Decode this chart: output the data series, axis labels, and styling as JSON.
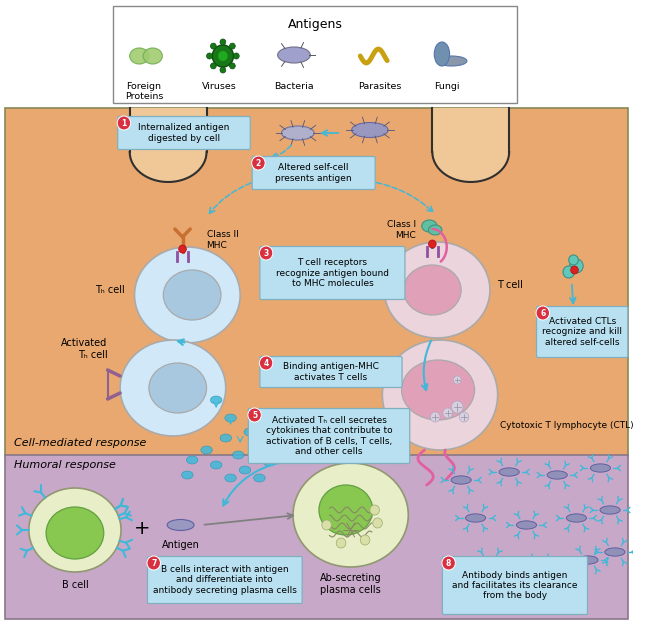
{
  "bg_white": "#ffffff",
  "bg_orange": "#e8a870",
  "bg_purple": "#c8a8c8",
  "legend_bg": "#ffffff",
  "legend_border": "#888888",
  "cell_blue_fill": "#d0e8f8",
  "cell_blue_outline": "#aaaaaa",
  "cell_blue_nucleus": "#a8c8e0",
  "cell_pink_fill": "#ecd4dc",
  "cell_pink_outline": "#aaaaaa",
  "cell_pink_nucleus": "#e0a0b8",
  "cell_bcell_outer": "#e8eec8",
  "cell_bcell_inner": "#88c850",
  "box_color": "#b8e0f0",
  "box_edge": "#80b0c0",
  "arrow_cyan": "#40b8d8",
  "arrow_pink": "#e060a0",
  "num_circle": "#d83040",
  "num_text": "#ffffff",
  "bacteria_fill": "#9898c8",
  "bacteria_outline": "#6868a0",
  "membrane_color": "#303030",
  "mhc_orange": "#c87030",
  "mhc_purple": "#9050a0",
  "title": "Antigens",
  "legend_items": [
    "Foreign\nProteins",
    "Viruses",
    "Bacteria",
    "Parasites",
    "Fungi"
  ],
  "step_labels": [
    "Internalized antigen\ndigested by cell",
    "Altered self-cell\npresents antigen",
    "T cell receptors\nrecognize antigen bound\nto MHC molecules",
    "Binding antigen-MHC\nactivates T cells",
    "Activated Tₕ cell secretes\ncytokines that contribute to\nactivation of B cells, T⁣ cells,\nand other cells",
    "Activated CTLs\nrecognize and kill\naltered self-cells",
    "B cells interact with antigen\nand differentiate into\nantibody secreting plasma cells",
    "Antibody binds antigen\nand facilitates its clearance\nfrom the body"
  ],
  "section_cell": "Cell-mediated response",
  "section_humoral": "Humoral response",
  "cell_labels": [
    "Tₕ cell",
    "Activated\nTₕ cell",
    "T⁣ cell",
    "Cytotoxic T lymphocyte (CTL)",
    "B cell",
    "Ab-secreting\nplasma cells"
  ],
  "mhc_labels": [
    "Class II\nMHC",
    "Class I\nMHC"
  ],
  "antigen_label": "Antigen"
}
